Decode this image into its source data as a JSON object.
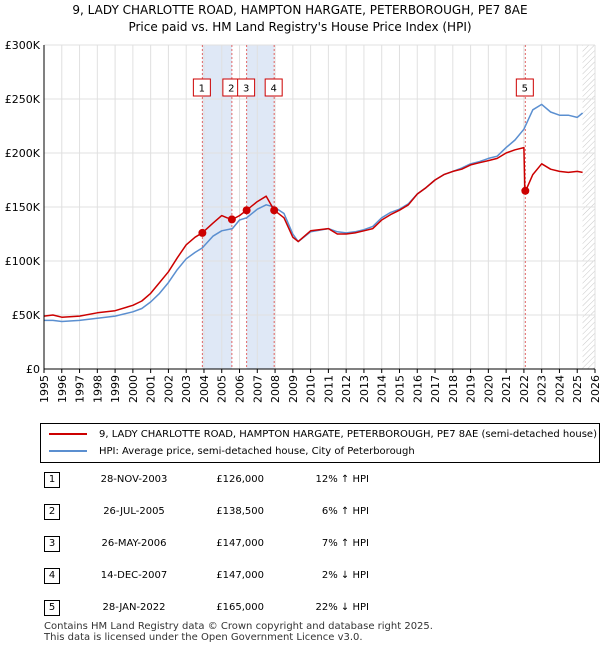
{
  "title_line1": "9, LADY CHARLOTTE ROAD, HAMPTON HARGATE, PETERBOROUGH, PE7 8AE",
  "title_line2": "Price paid vs. HM Land Registry's House Price Index (HPI)",
  "chart_data": {
    "type": "line",
    "title": "9, LADY CHARLOTTE ROAD, HAMPTON HARGATE, PETERBOROUGH, PE7 8AE — Price paid vs. HM Land Registry's House Price Index (HPI)",
    "xlim": [
      1995,
      2026
    ],
    "ylim": [
      0,
      300000
    ],
    "y_ticks": [
      {
        "value": 0,
        "label": "£0"
      },
      {
        "value": 50000,
        "label": "£50K"
      },
      {
        "value": 100000,
        "label": "£100K"
      },
      {
        "value": 150000,
        "label": "£150K"
      },
      {
        "value": 200000,
        "label": "£200K"
      },
      {
        "value": 250000,
        "label": "£250K"
      },
      {
        "value": 300000,
        "label": "£300K"
      }
    ],
    "x_ticks": [
      "1995",
      "1996",
      "1997",
      "1998",
      "1999",
      "2000",
      "2001",
      "2002",
      "2003",
      "2004",
      "2005",
      "2006",
      "2007",
      "2008",
      "2009",
      "2010",
      "2011",
      "2012",
      "2013",
      "2014",
      "2015",
      "2016",
      "2017",
      "2018",
      "2019",
      "2020",
      "2021",
      "2022",
      "2023",
      "2024",
      "2025",
      "2026"
    ],
    "grid": true,
    "series": [
      {
        "name": "9, LADY CHARLOTTE ROAD, HAMPTON HARGATE, PETERBOROUGH, PE7 8AE (semi-detached house)",
        "color": "#cc0000",
        "x": [
          1995.0,
          1995.5,
          1996.0,
          1997.0,
          1998.0,
          1999.0,
          2000.0,
          2000.5,
          2001.0,
          2001.5,
          2002.0,
          2002.5,
          2003.0,
          2003.5,
          2003.9,
          2004.5,
          2005.0,
          2005.3,
          2005.6,
          2006.0,
          2006.4,
          2007.0,
          2007.5,
          2007.95,
          2008.5,
          2009.0,
          2009.3,
          2010.0,
          2011.0,
          2011.5,
          2012.0,
          2012.5,
          2013.0,
          2013.5,
          2014.0,
          2014.5,
          2015.0,
          2015.5,
          2016.0,
          2016.5,
          2017.0,
          2017.5,
          2018.0,
          2018.5,
          2019.0,
          2019.5,
          2020.0,
          2020.5,
          2021.0,
          2021.5,
          2022.0,
          2022.05,
          2022.1,
          2022.5,
          2023.0,
          2023.5,
          2024.0,
          2024.5,
          2025.0,
          2025.3
        ],
        "values": [
          49000,
          50000,
          48000,
          49000,
          52000,
          54000,
          59000,
          63000,
          70000,
          80000,
          90000,
          103000,
          115000,
          122000,
          126000,
          135000,
          142000,
          140000,
          138500,
          142000,
          147000,
          155000,
          160000,
          147000,
          140000,
          122000,
          118000,
          128000,
          130000,
          125000,
          125000,
          126000,
          128000,
          130000,
          138000,
          143000,
          147000,
          152000,
          162000,
          168000,
          175000,
          180000,
          183000,
          185000,
          189000,
          191000,
          193000,
          195000,
          200000,
          203000,
          205000,
          168000,
          165000,
          180000,
          190000,
          185000,
          183000,
          182000,
          183000,
          182000
        ]
      },
      {
        "name": "HPI: Average price, semi-detached house, City of Peterborough",
        "color": "#5b8fd0",
        "x": [
          1995.0,
          1995.5,
          1996.0,
          1997.0,
          1998.0,
          1999.0,
          2000.0,
          2000.5,
          2001.0,
          2001.5,
          2002.0,
          2002.5,
          2003.0,
          2003.5,
          2003.9,
          2004.5,
          2005.0,
          2005.6,
          2006.0,
          2006.4,
          2007.0,
          2007.5,
          2007.95,
          2008.5,
          2009.0,
          2009.3,
          2010.0,
          2011.0,
          2011.5,
          2012.0,
          2012.5,
          2013.0,
          2013.5,
          2014.0,
          2014.5,
          2015.0,
          2015.5,
          2016.0,
          2016.5,
          2017.0,
          2017.5,
          2018.0,
          2018.5,
          2019.0,
          2019.5,
          2020.0,
          2020.5,
          2021.0,
          2021.5,
          2022.0,
          2022.5,
          2023.0,
          2023.5,
          2024.0,
          2024.5,
          2025.0,
          2025.3
        ],
        "values": [
          45000,
          45000,
          44000,
          45000,
          47000,
          49000,
          53000,
          56000,
          62000,
          70000,
          80000,
          92000,
          102000,
          108000,
          112000,
          123000,
          128000,
          130000,
          138000,
          140000,
          148000,
          152000,
          150000,
          144000,
          125000,
          118000,
          127000,
          130000,
          127000,
          126000,
          127000,
          129000,
          132000,
          140000,
          145000,
          148000,
          153000,
          162000,
          168000,
          175000,
          180000,
          183000,
          186000,
          190000,
          192000,
          195000,
          197000,
          205000,
          212000,
          222000,
          240000,
          245000,
          238000,
          235000,
          235000,
          233000,
          237000
        ]
      }
    ],
    "sales": [
      {
        "num": "1",
        "date": "28-NOV-2003",
        "price": "£126,000",
        "hpi": "12% ↑ HPI",
        "x": 2003.91,
        "value": 126000
      },
      {
        "num": "2",
        "date": "26-JUL-2005",
        "price": "£138,500",
        "hpi": "6% ↑ HPI",
        "x": 2005.57,
        "value": 138500
      },
      {
        "num": "3",
        "date": "26-MAY-2006",
        "price": "£147,000",
        "hpi": "7% ↑ HPI",
        "x": 2006.4,
        "value": 147000
      },
      {
        "num": "4",
        "date": "14-DEC-2007",
        "price": "£147,000",
        "hpi": "2% ↓ HPI",
        "x": 2007.95,
        "value": 147000
      },
      {
        "num": "5",
        "date": "28-JAN-2022",
        "price": "£165,000",
        "hpi": "22% ↓ HPI",
        "x": 2022.08,
        "value": 165000
      }
    ],
    "shaded_periods": [
      [
        2003.91,
        2005.57
      ],
      [
        2006.4,
        2007.95
      ]
    ],
    "future_hatch_from": 2025.3
  },
  "legend": {
    "property_label": "9, LADY CHARLOTTE ROAD, HAMPTON HARGATE, PETERBOROUGH, PE7 8AE (semi-detached house)",
    "hpi_label": "HPI: Average price, semi-detached house, City of Peterborough",
    "property_color": "#cc0000",
    "hpi_color": "#5b8fd0"
  },
  "footer": {
    "line1": "Contains HM Land Registry data © Crown copyright and database right 2025.",
    "line2": "This data is licensed under the Open Government Licence v3.0."
  }
}
